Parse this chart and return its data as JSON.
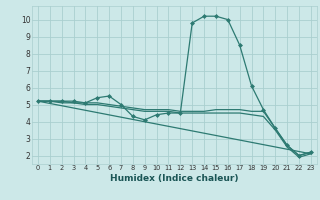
{
  "xlabel": "Humidex (Indice chaleur)",
  "background_color": "#cce8e8",
  "line_color": "#2d7a72",
  "grid_color": "#aacfcf",
  "xlim": [
    -0.5,
    23.5
  ],
  "ylim": [
    1.5,
    10.8
  ],
  "yticks": [
    2,
    3,
    4,
    5,
    6,
    7,
    8,
    9,
    10
  ],
  "xticks": [
    0,
    1,
    2,
    3,
    4,
    5,
    6,
    7,
    8,
    9,
    10,
    11,
    12,
    13,
    14,
    15,
    16,
    17,
    18,
    19,
    20,
    21,
    22,
    23
  ],
  "series": [
    {
      "x": [
        0,
        1,
        2,
        3,
        4,
        5,
        6,
        7,
        8,
        9,
        10,
        11,
        12,
        13,
        14,
        15,
        16,
        17,
        18,
        19,
        20,
        21,
        22,
        23
      ],
      "y": [
        5.2,
        5.2,
        5.2,
        5.2,
        5.1,
        5.4,
        5.5,
        5.0,
        4.3,
        4.1,
        4.4,
        4.5,
        4.5,
        9.8,
        10.2,
        10.2,
        10.0,
        8.5,
        6.1,
        4.7,
        3.6,
        2.6,
        2.0,
        2.2
      ],
      "has_markers": true
    },
    {
      "x": [
        0,
        1,
        2,
        3,
        4,
        5,
        6,
        7,
        8,
        9,
        10,
        11,
        12,
        13,
        14,
        15,
        16,
        17,
        18,
        19,
        20,
        21,
        22,
        23
      ],
      "y": [
        5.2,
        5.2,
        5.2,
        5.1,
        5.1,
        5.1,
        5.0,
        4.9,
        4.8,
        4.7,
        4.7,
        4.7,
        4.6,
        4.6,
        4.6,
        4.7,
        4.7,
        4.7,
        4.6,
        4.6,
        3.6,
        2.6,
        2.0,
        2.2
      ],
      "has_markers": false
    },
    {
      "x": [
        0,
        1,
        2,
        3,
        4,
        5,
        6,
        7,
        8,
        9,
        10,
        11,
        12,
        13,
        14,
        15,
        16,
        17,
        18,
        19,
        20,
        21,
        22,
        23
      ],
      "y": [
        5.2,
        5.2,
        5.1,
        5.1,
        5.0,
        5.0,
        4.9,
        4.8,
        4.7,
        4.6,
        4.6,
        4.6,
        4.5,
        4.5,
        4.5,
        4.5,
        4.5,
        4.5,
        4.4,
        4.3,
        3.5,
        2.5,
        1.9,
        2.1
      ],
      "has_markers": false
    },
    {
      "x": [
        0,
        23
      ],
      "y": [
        5.2,
        2.1
      ],
      "has_markers": false
    }
  ]
}
